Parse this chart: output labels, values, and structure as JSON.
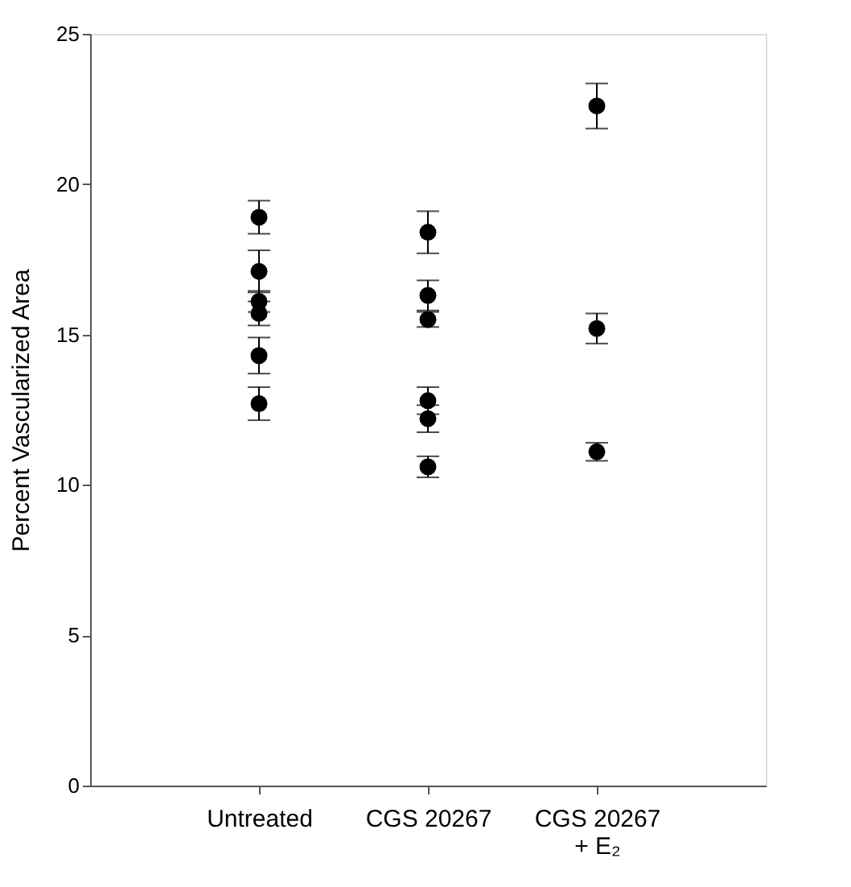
{
  "chart_data": {
    "type": "scatter",
    "ylabel": "Percent Vascularized Area",
    "categories": [
      "Untreated",
      "CGS 20267",
      "CGS 20267\n+ E₂"
    ],
    "series": [
      {
        "color": "#000000",
        "x": [
          "Untreated",
          "Untreated",
          "Untreated",
          "Untreated",
          "Untreated",
          "Untreated",
          "CGS 20267",
          "CGS 20267",
          "CGS 20267",
          "CGS 20267",
          "CGS 20267",
          "CGS 20267",
          "CGS 20267\n+ E₂",
          "CGS 20267\n+ E₂",
          "CGS 20267\n+ E₂"
        ],
        "values": [
          18.9,
          17.1,
          16.1,
          15.7,
          14.3,
          12.7,
          18.4,
          16.3,
          15.5,
          12.8,
          12.2,
          10.6,
          22.6,
          15.2,
          11.1
        ],
        "errors": [
          0.55,
          0.7,
          0.35,
          0.4,
          0.6,
          0.55,
          0.7,
          0.5,
          0.25,
          0.45,
          0.45,
          0.35,
          0.75,
          0.5,
          0.3
        ]
      }
    ],
    "ylim": [
      0,
      25
    ],
    "yticks": [
      0,
      5,
      10,
      15,
      20,
      25
    ],
    "grid": false,
    "marker": "circle"
  }
}
